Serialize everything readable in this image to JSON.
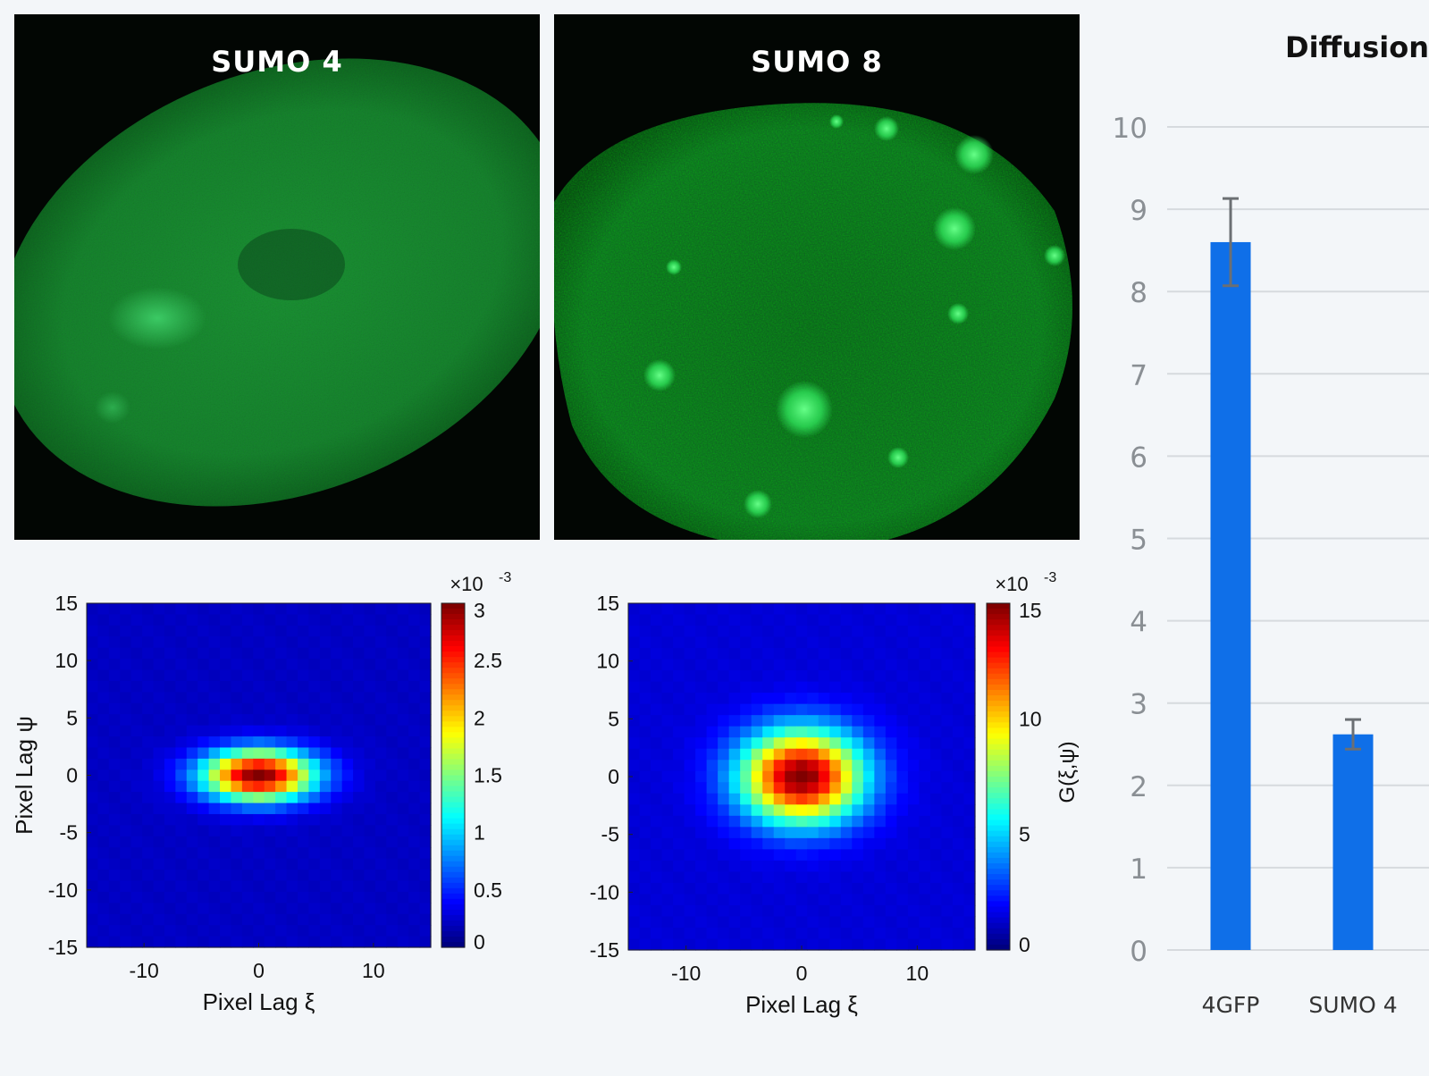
{
  "images": [
    {
      "title": "SUMO 4"
    },
    {
      "title": "SUMO 8"
    }
  ],
  "acf_plots": [
    {
      "xlabel": "Pixel Lag ξ",
      "ylabel": "Pixel Lag ψ",
      "xticks": [
        "-10",
        "0",
        "10"
      ],
      "yticks": [
        "15",
        "10",
        "5",
        "0",
        "-5",
        "-10",
        "-15"
      ],
      "colorbar_ticks": [
        "3",
        "2.5",
        "2",
        "1.5",
        "1",
        "0.5",
        "0"
      ],
      "colorbar_max": 3,
      "colorbar_exponent": "×10",
      "colorbar_exponent_power": "-3",
      "colorbar_label": ""
    },
    {
      "xlabel": "Pixel Lag ξ",
      "ylabel": "",
      "xticks": [
        "-10",
        "0",
        "10"
      ],
      "yticks": [
        "15",
        "10",
        "5",
        "0",
        "-5",
        "-10",
        "-15"
      ],
      "colorbar_ticks": [
        "15",
        "10",
        "5",
        "0"
      ],
      "colorbar_max": 15,
      "colorbar_exponent": "×10",
      "colorbar_exponent_power": "-3",
      "colorbar_label": "G(ξ,ψ)"
    }
  ],
  "chart_data": [
    {
      "type": "heatmap",
      "title": "",
      "xlabel": "Pixel Lag ξ",
      "ylabel": "Pixel Lag ψ",
      "xlim": [
        -15,
        15
      ],
      "ylim": [
        -15,
        15
      ],
      "colorbar_range": [
        0,
        0.003
      ],
      "peak": {
        "x": 0,
        "y": 0,
        "value": 0.003
      },
      "shape": "elongated along ξ (σξ ≈ 3.5 px, σψ ≈ 1.8 px)"
    },
    {
      "type": "heatmap",
      "title": "",
      "xlabel": "Pixel Lag ξ",
      "ylabel": "",
      "colorbar_label": "G(ξ,ψ)",
      "xlim": [
        -15,
        15
      ],
      "ylim": [
        -15,
        15
      ],
      "colorbar_range": [
        0,
        0.015
      ],
      "peak": {
        "x": 0,
        "y": 0,
        "value": 0.015
      },
      "shape": "broader, σξ ≈ 3.8 px, σψ ≈ 3.0 px"
    },
    {
      "type": "bar",
      "title": "Diffusion",
      "categories": [
        "4GFP",
        "SUMO 4"
      ],
      "values": [
        8.6,
        2.62
      ],
      "errors": [
        0.53,
        0.18
      ],
      "ylim": [
        0,
        10
      ],
      "yticks": [
        "0",
        "1",
        "2",
        "3",
        "4",
        "5",
        "6",
        "7",
        "8",
        "9",
        "10"
      ],
      "grid": true,
      "bar_color": "#0f6fe8"
    }
  ]
}
